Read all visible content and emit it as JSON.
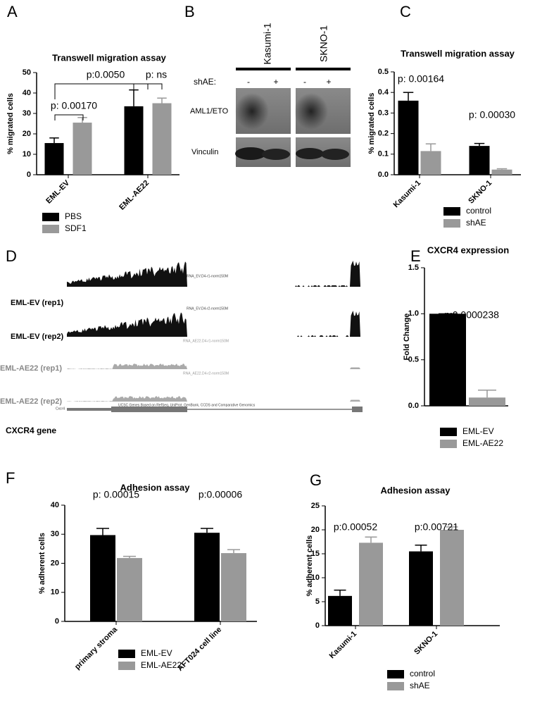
{
  "panels": [
    "A",
    "B",
    "C",
    "D",
    "E",
    "F",
    "G"
  ],
  "chart_data": [
    {
      "type": "bar",
      "title": "Transwell migration assay",
      "ylabel": "% migrated cells",
      "categories": [
        "EML-EV",
        "EML-AE22"
      ],
      "series": [
        {
          "name": "PBS",
          "color": "#000000",
          "values": [
            15.5,
            33.5
          ],
          "errors": [
            2.5,
            8
          ]
        },
        {
          "name": "SDF1",
          "color": "#999999",
          "values": [
            25.5,
            35
          ],
          "errors": [
            2.5,
            2.5
          ]
        }
      ],
      "ylim": [
        0,
        50
      ],
      "yticks": [
        0,
        10,
        20,
        30,
        40,
        50
      ],
      "legend": "bottom",
      "annotations": [
        "p: 0.00170",
        "p:0.0050",
        "p: ns"
      ]
    },
    {
      "type": "bar",
      "title": "Transwell migration assay",
      "ylabel": "% migrated cells",
      "categories": [
        "Kasumi-1",
        "SKNO-1"
      ],
      "series": [
        {
          "name": "control",
          "color": "#000000",
          "values": [
            0.36,
            0.14
          ],
          "errors": [
            0.04,
            0.012
          ]
        },
        {
          "name": "shAE",
          "color": "#999999",
          "values": [
            0.115,
            0.025
          ],
          "errors": [
            0.035,
            0.004
          ]
        }
      ],
      "ylim": [
        0,
        0.5
      ],
      "yticks": [
        {
          "value": 0,
          "label": "0.0"
        },
        0.1,
        0.2,
        0.3,
        0.4,
        0.5
      ],
      "legend": "bottom",
      "annotations": [
        "p: 0.00164",
        "p: 0.00030"
      ]
    },
    {
      "type": "bar",
      "title": "CXCR4 expression",
      "ylabel": "Fold Change",
      "categories": [
        null
      ],
      "series": [
        {
          "name": "EML-EV",
          "color": "#000000",
          "values": [
            1.0
          ],
          "errors": [
            0
          ]
        },
        {
          "name": "EML-AE22",
          "color": "#999999",
          "values": [
            0.09
          ],
          "errors": [
            0.08
          ]
        }
      ],
      "ylim": [
        0,
        1.5
      ],
      "yticks": [
        {
          "value": 0,
          "label": "0.0"
        },
        0.5,
        {
          "value": 1,
          "label": "1.0"
        },
        1.5
      ],
      "legend": "bottom",
      "annotations": [
        "p:0.0000238"
      ]
    },
    {
      "type": "bar",
      "title": "Adhesion assay",
      "ylabel": "% adherent cells",
      "categories": [
        "primary stroma",
        "AFT024 cell line"
      ],
      "series": [
        {
          "name": "EML-EV",
          "color": "#000000",
          "values": [
            29.7,
            30.5
          ],
          "errors": [
            2.3,
            1.5
          ]
        },
        {
          "name": "EML-AE22",
          "color": "#999999",
          "values": [
            21.8,
            23.5
          ],
          "errors": [
            0.6,
            1.2
          ]
        }
      ],
      "ylim": [
        0,
        40
      ],
      "yticks": [
        0,
        10,
        20,
        30,
        40
      ],
      "legend": "bottom",
      "annotations": [
        "p: 0.00015",
        "p:0.00006"
      ]
    },
    {
      "type": "bar",
      "title": "Adhesion assay",
      "ylabel": "% adherent cells",
      "categories": [
        "Kasumi-1",
        "SKNO-1"
      ],
      "series": [
        {
          "name": "control",
          "color": "#000000",
          "values": [
            6.2,
            15.5
          ],
          "errors": [
            1.2,
            1.3
          ]
        },
        {
          "name": "shAE",
          "color": "#999999",
          "values": [
            17.3,
            20
          ],
          "errors": [
            1.2,
            0.6
          ]
        }
      ],
      "ylim": [
        0,
        25
      ],
      "yticks": [
        0,
        5,
        10,
        15,
        20,
        25
      ],
      "legend": "bottom",
      "annotations": [
        "p:0.00052",
        "p:0.00721"
      ]
    }
  ],
  "blot": {
    "columns": [
      "Kasumi-1",
      "SKNO-1"
    ],
    "condition": "shAE:",
    "lanes": [
      "-",
      "+",
      "-",
      "+"
    ],
    "rows": [
      "AML1/ETO",
      "Vinculin"
    ]
  },
  "tracks": {
    "rows": [
      "EML-EV (rep1)",
      "EML-EV (rep2)",
      "EML-AE22 (rep1)",
      "EML-AE22 (rep2)"
    ],
    "track_names": [
      "RNA_EV.D4-r1-norm150M",
      "RNA_EV.D4-r2-norm150M",
      "RNA_AE22.D4-r1-norm150M",
      "RNA_AE22.D4-r2-norm150M"
    ],
    "gene_track": "UCSC Genes Based on RefSeq, UniProt, GenBank, CCDS and Comparative Genomics",
    "gene_symbol": "Cxcr4",
    "gene_label": "CXCR4 gene"
  }
}
